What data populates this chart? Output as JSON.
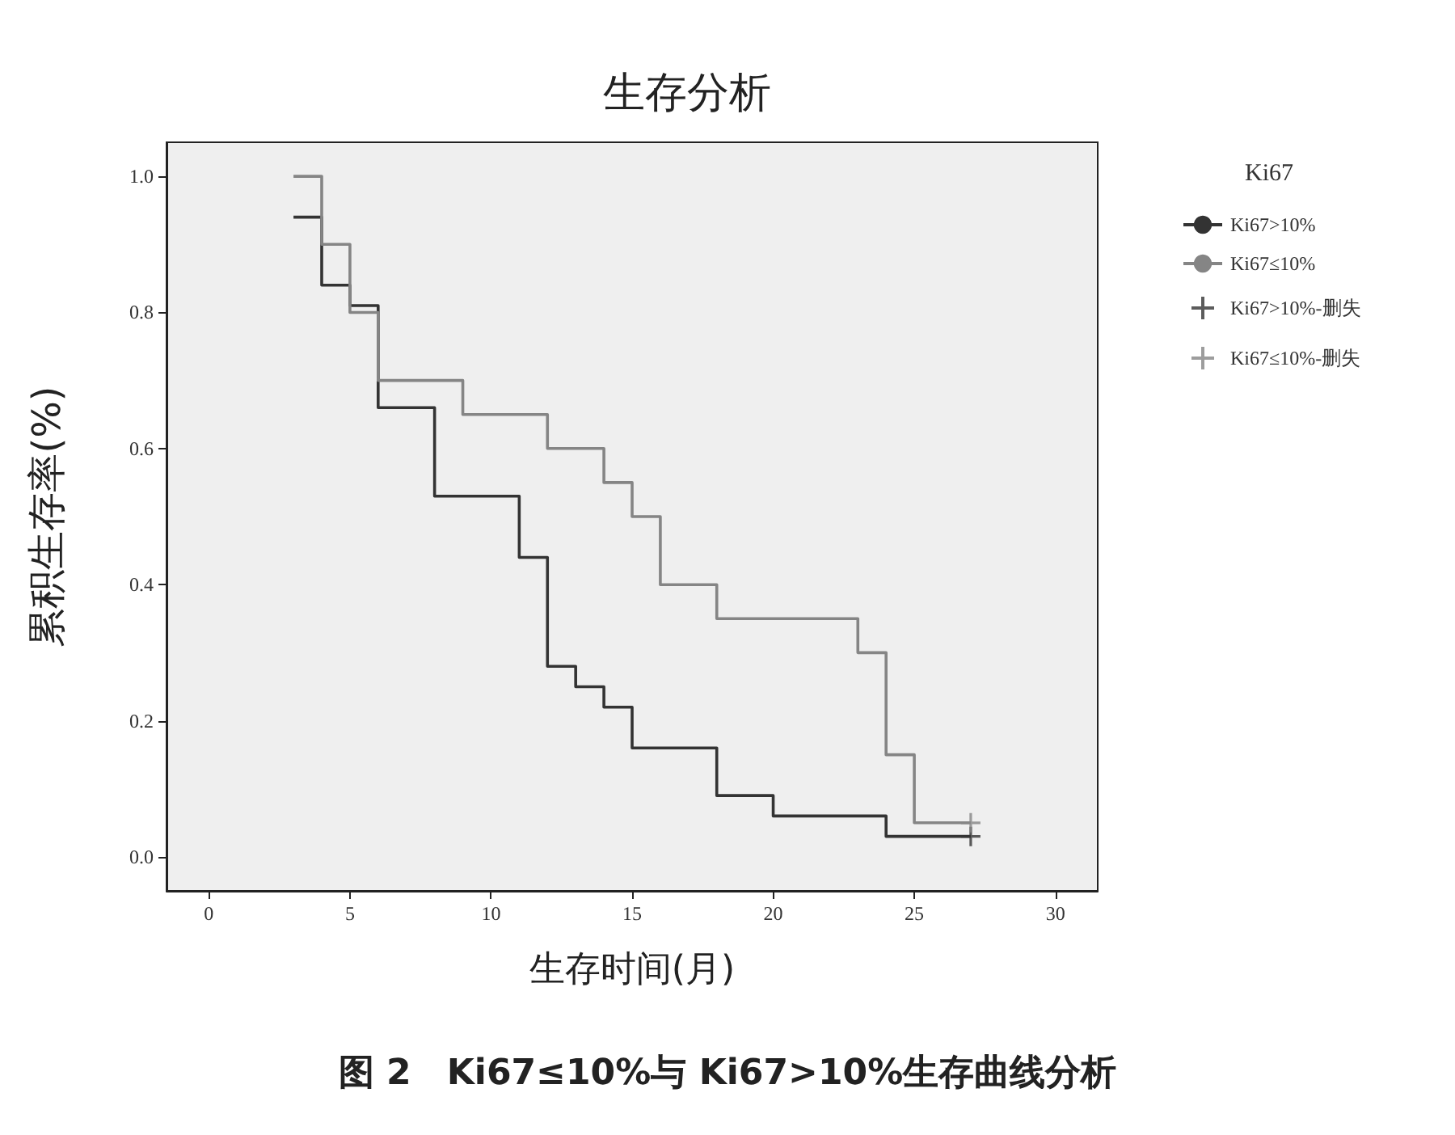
{
  "chart_data": {
    "type": "step",
    "title": "生存分析",
    "xlabel": "生存时间(月)",
    "ylabel": "累积生存率(%)",
    "legend_title": "Ki67",
    "legend": "right",
    "xlim": [
      -1.5,
      31.5
    ],
    "xticks": [
      0,
      5,
      10,
      15,
      20,
      25,
      30
    ],
    "ylim": [
      -0.05,
      1.05
    ],
    "yticks": [
      {
        "value": 0,
        "label": "0.0"
      },
      0.2,
      0.4,
      0.6,
      0.8,
      {
        "value": 1,
        "label": "1.0"
      }
    ],
    "grid": false,
    "series": [
      {
        "name": "Ki67>10%",
        "color": "#333333",
        "marker": "none",
        "x": [
          3,
          4,
          5,
          6,
          8,
          11,
          12,
          13,
          14,
          15,
          18,
          20,
          24,
          27
        ],
        "values": [
          0.94,
          0.84,
          0.81,
          0.66,
          0.53,
          0.44,
          0.28,
          0.25,
          0.22,
          0.16,
          0.09,
          0.06,
          0.03,
          0.03
        ]
      },
      {
        "name": "Ki67≤10%",
        "color": "#858585",
        "marker": "none",
        "x": [
          3,
          4,
          5,
          6,
          9,
          12,
          14,
          15,
          16,
          18,
          23,
          24,
          25,
          27
        ],
        "values": [
          1.0,
          0.9,
          0.8,
          0.7,
          0.65,
          0.6,
          0.55,
          0.5,
          0.4,
          0.35,
          0.3,
          0.15,
          0.05,
          0.05
        ]
      },
      {
        "name": "Ki67>10%-删失",
        "type": "scatter",
        "color": "#333333",
        "marker": "cross",
        "x": [
          27
        ],
        "values": [
          0.03
        ]
      },
      {
        "name": "Ki67≤10%-删失",
        "type": "scatter",
        "color": "#858585",
        "marker": "cross",
        "x": [
          27
        ],
        "values": [
          0.05
        ]
      }
    ],
    "annotations": [
      "图 2　Ki67≤10%与 Ki67>10%生存曲线分析"
    ]
  }
}
